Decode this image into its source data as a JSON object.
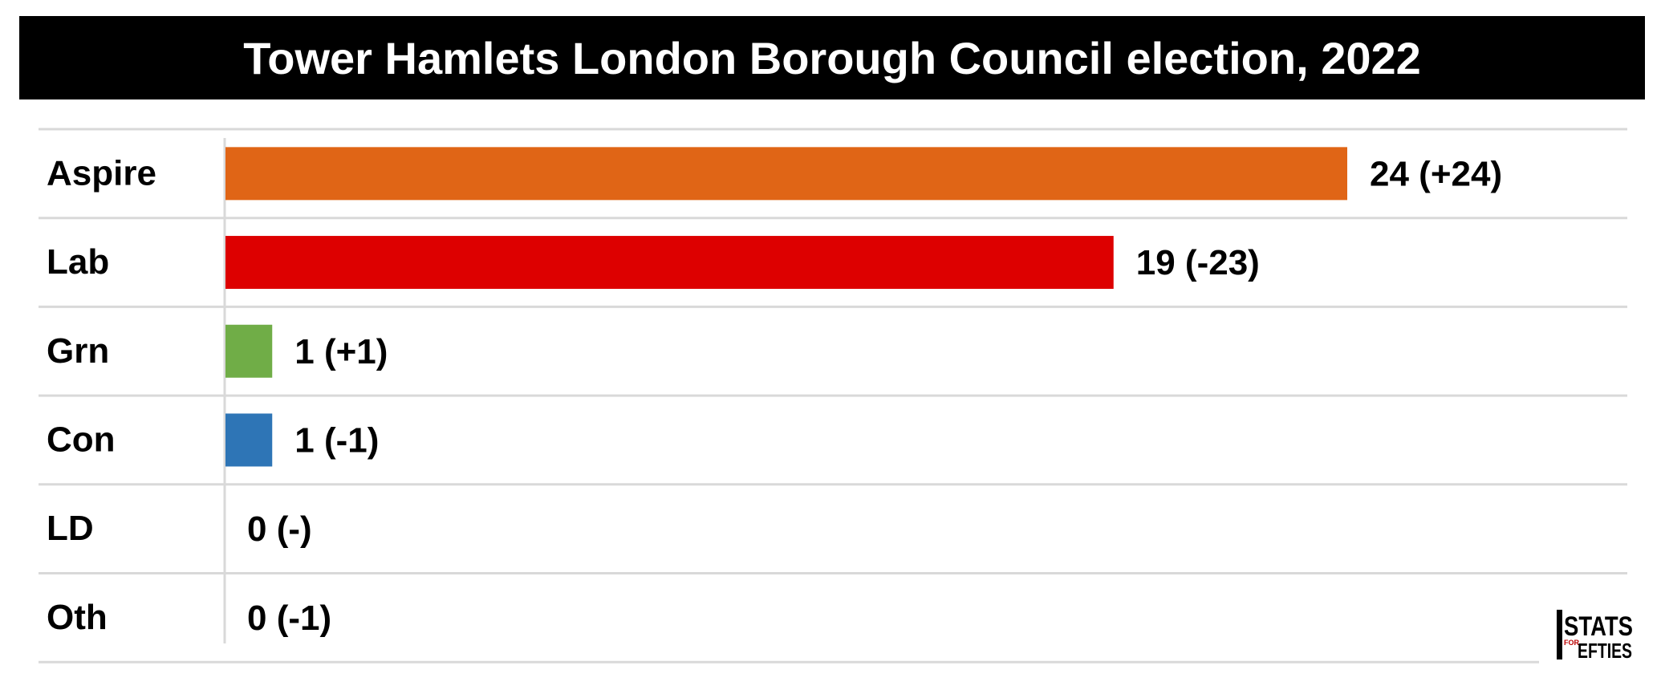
{
  "title": "Tower Hamlets London Borough Council election, 2022",
  "logo_text": "STATS FOR LEFTIES",
  "chart_data": {
    "type": "bar",
    "orientation": "horizontal",
    "title": "Tower Hamlets London Borough Council election, 2022",
    "categories": [
      "Aspire",
      "Lab",
      "Grn",
      "Con",
      "LD",
      "Oth"
    ],
    "values": [
      24,
      19,
      1,
      1,
      0,
      0
    ],
    "data_labels": [
      "24 (+24)",
      "19 (-23)",
      "1 (+1)",
      "1 (-1)",
      "0 (-)",
      "0 (-1)"
    ],
    "colors": [
      "#E06516",
      "#DD0000",
      "#70AD47",
      "#2E75B6",
      "#FAA61A",
      "#999999"
    ],
    "xlabel": "",
    "ylabel": "",
    "grid": true
  }
}
